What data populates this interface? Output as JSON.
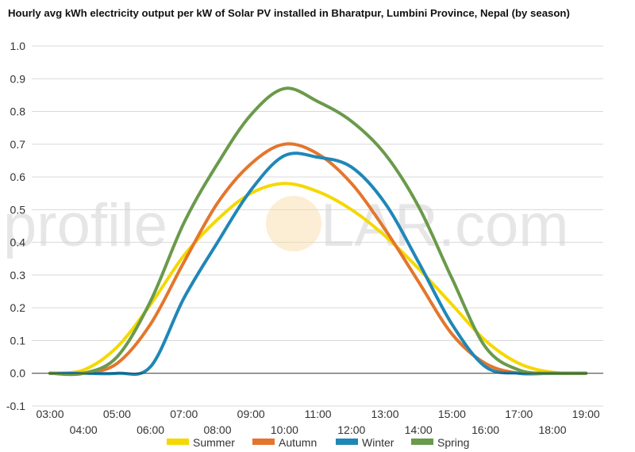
{
  "chart_data": {
    "type": "line",
    "title": "Hourly avg kWh electricity output per kW of Solar PV installed in Bharatpur, Lumbini Province, Nepal (by season)",
    "xlabel": "",
    "ylabel": "",
    "ylim": [
      -0.1,
      1.0
    ],
    "grid": true,
    "legend_position": "bottom",
    "x": [
      "03:00",
      "04:00",
      "05:00",
      "06:00",
      "07:00",
      "08:00",
      "09:00",
      "10:00",
      "11:00",
      "12:00",
      "13:00",
      "14:00",
      "15:00",
      "16:00",
      "17:00",
      "18:00",
      "19:00"
    ],
    "y_ticks": [
      "1.0",
      "0.9",
      "0.8",
      "0.7",
      "0.6",
      "0.5",
      "0.4",
      "0.3",
      "0.2",
      "0.1",
      "0.0",
      "-0.1"
    ],
    "y_tick_values": [
      1.0,
      0.9,
      0.8,
      0.7,
      0.6,
      0.5,
      0.4,
      0.3,
      0.2,
      0.1,
      0.0,
      -0.1
    ],
    "series": [
      {
        "name": "Summer",
        "color": "#f5d800",
        "values": [
          0.0,
          0.01,
          0.08,
          0.21,
          0.36,
          0.47,
          0.55,
          0.58,
          0.555,
          0.5,
          0.42,
          0.32,
          0.21,
          0.1,
          0.03,
          0.003,
          0.0
        ]
      },
      {
        "name": "Autumn",
        "color": "#e3762c",
        "values": [
          0.0,
          0.0,
          0.03,
          0.15,
          0.34,
          0.52,
          0.64,
          0.7,
          0.67,
          0.58,
          0.44,
          0.28,
          0.12,
          0.03,
          0.0,
          0.0,
          0.0
        ]
      },
      {
        "name": "Winter",
        "color": "#1f87b7",
        "values": [
          0.0,
          0.0,
          0.0,
          0.02,
          0.23,
          0.4,
          0.56,
          0.665,
          0.66,
          0.63,
          0.52,
          0.34,
          0.15,
          0.02,
          0.0,
          0.0,
          0.0
        ]
      },
      {
        "name": "Spring",
        "color": "#6a9a4b",
        "values": [
          0.0,
          0.0,
          0.05,
          0.22,
          0.46,
          0.64,
          0.79,
          0.87,
          0.83,
          0.77,
          0.67,
          0.51,
          0.29,
          0.08,
          0.01,
          0.0,
          0.0
        ]
      }
    ]
  },
  "watermark": {
    "left": "profile",
    "right": "LAR.com"
  },
  "colors": {
    "grid": "#d9d9d9",
    "zero_line": "#333333",
    "text": "#333333",
    "watermark_sun": "#f6d9a0"
  }
}
